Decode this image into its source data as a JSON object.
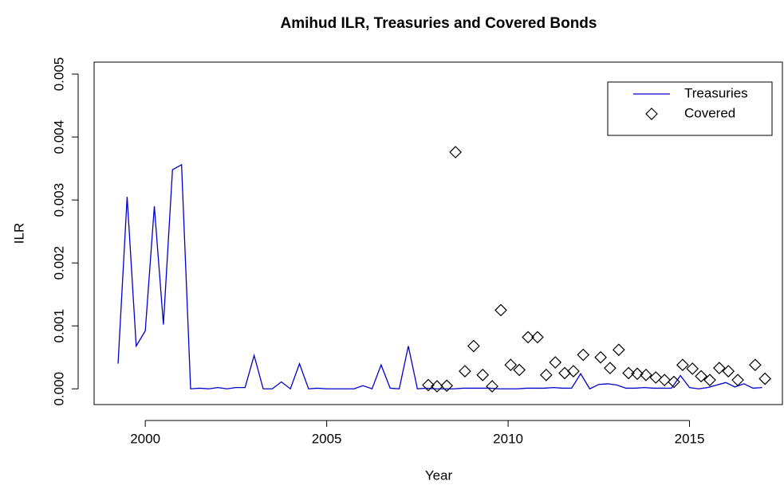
{
  "chart_data": {
    "type": "line",
    "title": "Amihud ILR, Treasuries and Covered Bonds",
    "xlabel": "Year",
    "ylabel": "ILR",
    "xlim": [
      1998.59,
      2017.56
    ],
    "ylim": [
      -0.00025,
      0.00519
    ],
    "xticks": [
      2000,
      2005,
      2010,
      2015
    ],
    "yticks": [
      {
        "value": 0,
        "label": "0.000"
      },
      {
        "value": 0.001,
        "label": "0.001"
      },
      {
        "value": 0.002,
        "label": "0.002"
      },
      {
        "value": 0.003,
        "label": "0.003"
      },
      {
        "value": 0.004,
        "label": "0.004"
      },
      {
        "value": 0.005,
        "label": "0.005"
      }
    ],
    "legend": "topright",
    "series": [
      {
        "name": "Treasuries",
        "type": "line",
        "color": "#0000cc",
        "x": [
          1999.25,
          1999.5,
          1999.75,
          2000,
          2000.25,
          2000.5,
          2000.75,
          2001,
          2001.25,
          2001.5,
          2001.75,
          2002,
          2002.25,
          2002.5,
          2002.75,
          2003,
          2003.25,
          2003.5,
          2003.75,
          2004,
          2004.25,
          2004.5,
          2004.75,
          2005,
          2005.25,
          2005.5,
          2005.75,
          2006,
          2006.25,
          2006.5,
          2006.75,
          2007,
          2007.25,
          2007.5,
          2007.75,
          2008,
          2008.25,
          2008.5,
          2008.75,
          2009,
          2009.25,
          2009.5,
          2009.75,
          2010,
          2010.25,
          2010.5,
          2010.75,
          2011,
          2011.25,
          2011.5,
          2011.75,
          2012,
          2012.25,
          2012.5,
          2012.75,
          2013,
          2013.25,
          2013.5,
          2013.75,
          2014,
          2014.25,
          2014.5,
          2014.75,
          2015,
          2015.25,
          2015.5,
          2015.75,
          2016,
          2016.25,
          2016.5,
          2016.75,
          2017
        ],
        "values": [
          0.0004,
          0.00305,
          0.00068,
          0.00092,
          0.0029,
          0.00102,
          0.00348,
          0.00356,
          0,
          1e-05,
          0,
          2e-05,
          0,
          2e-05,
          2e-05,
          0.00053,
          0,
          0,
          0.00011,
          0,
          0.0004,
          0,
          1e-05,
          0,
          0,
          0,
          0,
          5e-05,
          0,
          0.00038,
          1e-05,
          0,
          0.00068,
          0,
          1e-05,
          0,
          0,
          0,
          1e-05,
          1e-05,
          1e-05,
          1e-05,
          0,
          0,
          0,
          1e-05,
          1e-05,
          1e-05,
          2e-05,
          1e-05,
          1e-05,
          0.00024,
          0,
          7e-05,
          8e-05,
          6e-05,
          1e-05,
          1e-05,
          2e-05,
          1e-05,
          1e-05,
          1e-05,
          0.00021,
          2e-05,
          0,
          2e-05,
          6e-05,
          0.0001,
          3e-05,
          8e-05,
          1e-05,
          2e-05
        ]
      },
      {
        "name": "Covered",
        "type": "scatter",
        "color": "#000000",
        "x": [
          2007.8,
          2008.04,
          2008.31,
          2008.55,
          2008.81,
          2009.05,
          2009.3,
          2009.56,
          2009.8,
          2010.07,
          2010.31,
          2010.55,
          2010.81,
          2011.05,
          2011.3,
          2011.56,
          2011.8,
          2012.07,
          2012.55,
          2012.81,
          2013.05,
          2013.32,
          2013.56,
          2013.8,
          2014.07,
          2014.31,
          2014.57,
          2014.81,
          2015.08,
          2015.32,
          2015.56,
          2015.82,
          2016.07,
          2016.33,
          2016.81,
          2017.08
        ],
        "values": [
          6e-05,
          4e-05,
          5e-05,
          0.00376,
          0.00028,
          0.00068,
          0.00022,
          4e-05,
          0.00125,
          0.00038,
          0.0003,
          0.00082,
          0.00082,
          0.00022,
          0.00042,
          0.00025,
          0.00028,
          0.00054,
          0.0005,
          0.00033,
          0.00062,
          0.00025,
          0.00024,
          0.00022,
          0.00018,
          0.00014,
          0.00011,
          0.00038,
          0.00032,
          0.0002,
          0.00014,
          0.00033,
          0.00028,
          0.00014,
          0.00038,
          0.00016
        ]
      }
    ]
  }
}
